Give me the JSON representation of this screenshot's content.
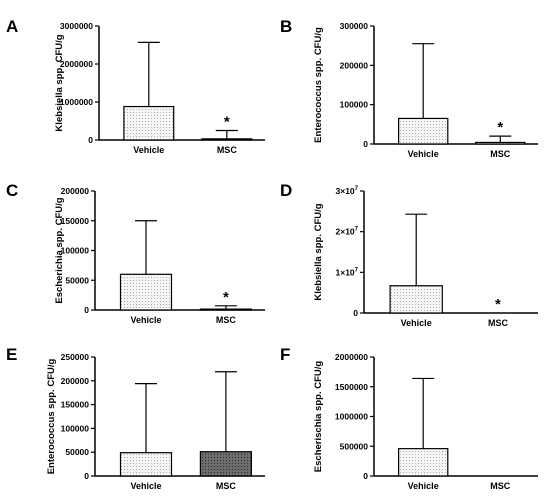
{
  "chart_data": [
    {
      "panel": "A",
      "type": "bar",
      "ylabel": "Klebsiella spp. CFU/g",
      "ylim": [
        0,
        3000000
      ],
      "yticks": [
        "0",
        "1000000",
        "2000000",
        "3000000"
      ],
      "categories": [
        "Vehicle",
        "MSC"
      ],
      "values": [
        880000,
        30000
      ],
      "error_upper": [
        2570000,
        250000
      ],
      "significance": [
        "",
        "*"
      ],
      "fill": [
        "dots",
        "dots"
      ],
      "grid": false
    },
    {
      "panel": "B",
      "type": "bar",
      "ylabel": "Enterococcus spp. CFU/g",
      "ylim": [
        0,
        300000
      ],
      "yticks": [
        "0",
        "100000",
        "200000",
        "300000"
      ],
      "categories": [
        "Vehicle",
        "MSC"
      ],
      "values": [
        65000,
        4000
      ],
      "error_upper": [
        255000,
        20000
      ],
      "significance": [
        "",
        "*"
      ],
      "fill": [
        "dots",
        "dots"
      ],
      "grid": false
    },
    {
      "panel": "C",
      "type": "bar",
      "ylabel": "Escherichia spp. CFU/g",
      "ylim": [
        0,
        200000
      ],
      "yticks": [
        "0",
        "50000",
        "100000",
        "150000",
        "200000"
      ],
      "categories": [
        "Vehicle",
        "MSC"
      ],
      "values": [
        60000,
        1500
      ],
      "error_upper": [
        150000,
        7000
      ],
      "significance": [
        "",
        "*"
      ],
      "fill": [
        "dots",
        "dots"
      ],
      "grid": false
    },
    {
      "panel": "D",
      "type": "bar",
      "ylabel": "Klebsiella spp. CFU/g",
      "ylim": [
        0,
        30000000
      ],
      "ytick_values": [
        0,
        10000000,
        20000000,
        30000000
      ],
      "yticks": [
        "0",
        "1×10",
        "2×10",
        "3×10"
      ],
      "ytick_exponents": [
        "",
        "7",
        "7",
        "7"
      ],
      "categories": [
        "Vehicle",
        "MSC"
      ],
      "values": [
        6700000,
        0
      ],
      "error_upper": [
        24300000,
        0
      ],
      "significance": [
        "",
        "*"
      ],
      "fill": [
        "dots",
        "dots"
      ],
      "grid": false
    },
    {
      "panel": "E",
      "type": "bar",
      "ylabel": "Enterococcus spp. CFU/g",
      "ylim": [
        0,
        250000
      ],
      "yticks": [
        "0",
        "50000",
        "100000",
        "150000",
        "200000",
        "250000"
      ],
      "categories": [
        "Vehicle",
        "MSC"
      ],
      "values": [
        49000,
        51000
      ],
      "error_upper": [
        194000,
        219000
      ],
      "significance": [
        "",
        ""
      ],
      "fill": [
        "dots",
        "dark"
      ],
      "grid": false
    },
    {
      "panel": "F",
      "type": "bar",
      "ylabel": "Escherischia spp. CFU/g",
      "ylim": [
        0,
        2000000
      ],
      "yticks": [
        "0",
        "500000",
        "1000000",
        "1500000",
        "2000000"
      ],
      "categories": [
        "Vehicle",
        "MSC"
      ],
      "values": [
        460000,
        0
      ],
      "error_upper": [
        1640000,
        0
      ],
      "significance": [
        "",
        ""
      ],
      "fill": [
        "dots",
        "dots"
      ],
      "grid": false
    }
  ],
  "colors": {
    "axis": "#000000",
    "bar_light": "#f6f6f6",
    "dot_light": "#9a9a9a",
    "bar_dark": "#6e6e6e",
    "dot_dark": "#2c2c2c"
  }
}
